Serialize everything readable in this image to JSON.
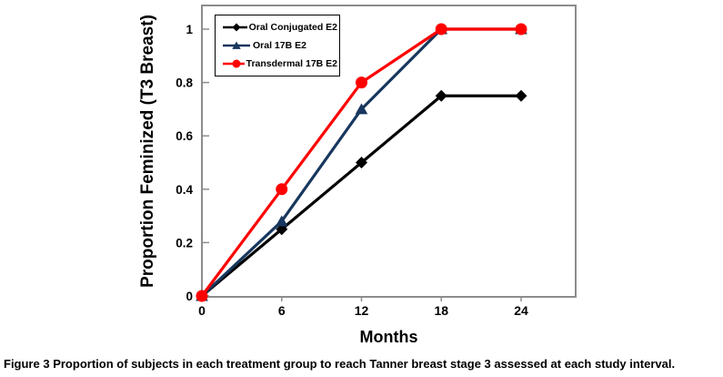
{
  "chart_data": {
    "type": "line",
    "title": "",
    "xlabel": "Months",
    "ylabel": "Proportion Feminized (T3 Breast)",
    "x": [
      0,
      6,
      12,
      18,
      24
    ],
    "xticks": [
      "0",
      "6",
      "12",
      "18",
      "24"
    ],
    "yticks": [
      "0",
      "0.2",
      "0.4",
      "0.6",
      "0.8",
      "1"
    ],
    "xlim": [
      0,
      28
    ],
    "ylim": [
      0,
      1.1
    ],
    "grid": false,
    "legend_position": "top-left",
    "axis_color": "#8c8c8c",
    "series": [
      {
        "name": "Oral Conjugated E2",
        "color": "#000000",
        "marker": "diamond",
        "values": [
          0,
          0.25,
          0.5,
          0.75,
          0.75
        ]
      },
      {
        "name": "Oral 17B E2",
        "color": "#17375E",
        "marker": "triangle",
        "values": [
          0,
          0.28,
          0.7,
          1,
          1
        ]
      },
      {
        "name": "Transdermal 17B E2",
        "color": "#FF0000",
        "marker": "circle",
        "values": [
          0,
          0.4,
          0.8,
          1,
          1
        ]
      }
    ]
  },
  "caption": {
    "label": "Figure 3",
    "text": "Proportion of subjects in each treatment group to reach Tanner breast stage 3 assessed at each study interval."
  }
}
